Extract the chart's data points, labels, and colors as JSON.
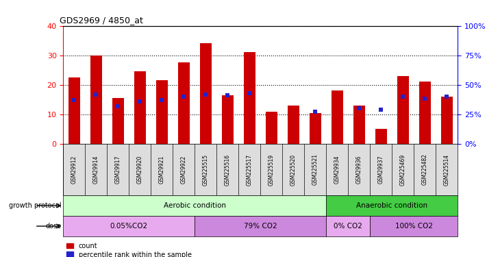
{
  "title": "GDS2969 / 4850_at",
  "samples": [
    "GSM29912",
    "GSM29914",
    "GSM29917",
    "GSM29920",
    "GSM29921",
    "GSM29922",
    "GSM225515",
    "GSM225516",
    "GSM225517",
    "GSM225519",
    "GSM225520",
    "GSM225521",
    "GSM29934",
    "GSM29936",
    "GSM29937",
    "GSM225469",
    "GSM225482",
    "GSM225514"
  ],
  "counts": [
    22.5,
    30.0,
    15.5,
    24.5,
    21.5,
    27.5,
    34.0,
    16.5,
    31.0,
    11.0,
    13.0,
    10.5,
    18.0,
    13.0,
    5.0,
    23.0,
    21.0,
    16.0
  ],
  "percentiles": [
    37,
    42,
    32,
    36,
    37,
    40,
    42,
    41,
    43,
    null,
    null,
    27,
    null,
    30,
    29,
    40,
    38,
    40
  ],
  "ylim_left": [
    0,
    40
  ],
  "ylim_right": [
    0,
    100
  ],
  "yticks_left": [
    0,
    10,
    20,
    30,
    40
  ],
  "yticks_right": [
    0,
    25,
    50,
    75,
    100
  ],
  "bar_color": "#cc0000",
  "percentile_color": "#2222cc",
  "groups": [
    {
      "label": "Aerobic condition",
      "start": 0,
      "end": 12,
      "bg": "#ccffcc"
    },
    {
      "label": "Anaerobic condition",
      "start": 12,
      "end": 18,
      "bg": "#44cc44"
    }
  ],
  "doses": [
    {
      "label": "0.05%CO2",
      "start": 0,
      "end": 6,
      "bg": "#e8aaee"
    },
    {
      "label": "79% CO2",
      "start": 6,
      "end": 12,
      "bg": "#cc88dd"
    },
    {
      "label": "0% CO2",
      "start": 12,
      "end": 14,
      "bg": "#e8aaee"
    },
    {
      "label": "100% CO2",
      "start": 14,
      "end": 18,
      "bg": "#cc88dd"
    }
  ],
  "growth_protocol_label": "growth protocol",
  "dose_label": "dose",
  "legend_count": "count",
  "legend_percentile": "percentile rank within the sample"
}
